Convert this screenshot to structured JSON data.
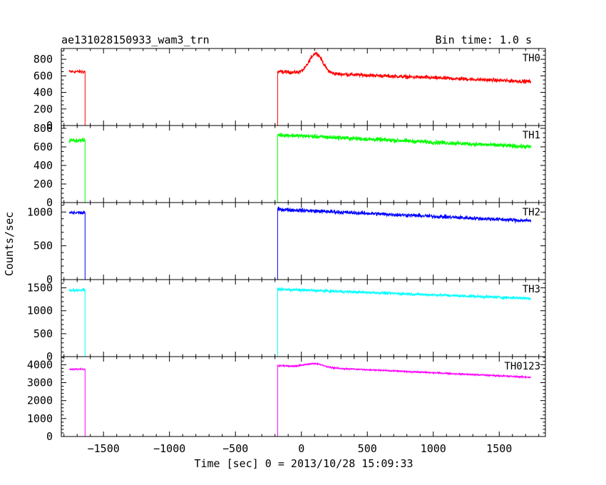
{
  "header": {
    "title": "ae131028150933_wam3_trn",
    "bin_time": "Bin time: 1.0 s"
  },
  "chart_data": {
    "type": "line",
    "xlabel": "Time [sec] 0 = 2013/10/28 15:09:33",
    "ylabel": "Counts/sec",
    "xlim": [
      -1820,
      1850
    ],
    "xticks": [
      -1500,
      -1000,
      -500,
      0,
      500,
      1000,
      1500
    ],
    "xtick_labels": [
      "−1500",
      "−1000",
      "−500",
      "0",
      "500",
      "1000",
      "1500"
    ],
    "gap": [
      -1640,
      -180
    ],
    "data_start": -1760,
    "data_end": 1740,
    "panels": [
      {
        "name": "TH0",
        "color": "#ff0000",
        "ylim": [
          0,
          930
        ],
        "yticks": [
          0,
          200,
          400,
          600,
          800
        ],
        "ytick_labels": [
          "0",
          "200",
          "400",
          "600",
          "800"
        ],
        "pre_level": 650,
        "post_start": 650,
        "post_end": 530,
        "noise": 35,
        "peak": {
          "x": 110,
          "height": 240,
          "width": 70
        }
      },
      {
        "name": "TH1",
        "color": "#00ff00",
        "ylim": [
          0,
          830
        ],
        "yticks": [
          0,
          200,
          400,
          600,
          800
        ],
        "ytick_labels": [
          "0",
          "200",
          "400",
          "600",
          "800"
        ],
        "pre_level": 670,
        "post_start": 730,
        "post_end": 600,
        "noise": 35
      },
      {
        "name": "TH2",
        "color": "#0000ff",
        "ylim": [
          0,
          1140
        ],
        "yticks": [
          0,
          500,
          1000
        ],
        "ytick_labels": [
          "0",
          "500",
          "1000"
        ],
        "pre_level": 990,
        "post_start": 1040,
        "post_end": 870,
        "noise": 45
      },
      {
        "name": "TH3",
        "color": "#00ffff",
        "ylim": [
          0,
          1680
        ],
        "yticks": [
          0,
          500,
          1000,
          1500
        ],
        "ytick_labels": [
          "0",
          "500",
          "1000",
          "1500"
        ],
        "pre_level": 1450,
        "post_start": 1470,
        "post_end": 1270,
        "noise": 50
      },
      {
        "name": "TH0123",
        "color": "#ff00ff",
        "ylim": [
          0,
          4450
        ],
        "yticks": [
          0,
          1000,
          2000,
          3000,
          4000
        ],
        "ytick_labels": [
          "0",
          "1000",
          "2000",
          "3000",
          "4000"
        ],
        "pre_level": 3750,
        "post_start": 3950,
        "post_end": 3300,
        "noise": 70,
        "peak": {
          "x": 100,
          "height": 200,
          "width": 100
        }
      }
    ]
  }
}
